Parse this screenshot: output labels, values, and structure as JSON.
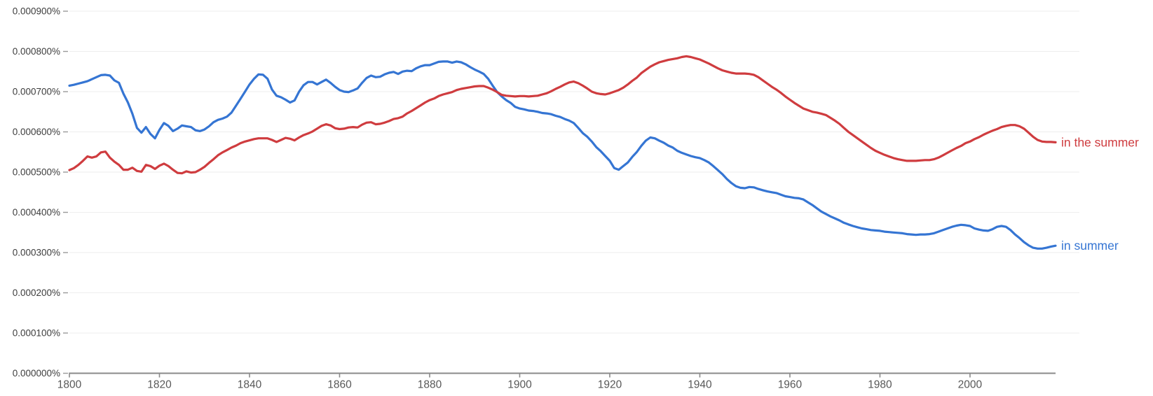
{
  "chart_data": {
    "type": "line",
    "title": "",
    "xlabel": "",
    "ylabel": "",
    "grid": true,
    "legend_position": "labels at right end of each line",
    "value_unit": "percent x 1e-4 (e.g. 7.15 = 0.000715%)",
    "x_range": [
      1800,
      2019
    ],
    "ylim": [
      0,
      9
    ],
    "x_ticks": [
      1800,
      1820,
      1840,
      1860,
      1880,
      1900,
      1920,
      1940,
      1960,
      1980,
      2000
    ],
    "y_ticks": [
      {
        "label": "0.000900%",
        "value": 9
      },
      {
        "label": "0.000800%",
        "value": 8
      },
      {
        "label": "0.000700%",
        "value": 7
      },
      {
        "label": "0.000600%",
        "value": 6
      },
      {
        "label": "0.000500%",
        "value": 5
      },
      {
        "label": "0.000400%",
        "value": 4
      },
      {
        "label": "0.000300%",
        "value": 3
      },
      {
        "label": "0.000200%",
        "value": 2
      },
      {
        "label": "0.000100%",
        "value": 1
      },
      {
        "label": "0.000000%",
        "value": 0
      }
    ],
    "series": [
      {
        "name": "in summer",
        "color": "#3575d3",
        "start_year": 1800,
        "step_years": 1,
        "values": [
          7.15,
          7.17,
          7.2,
          7.23,
          7.26,
          7.31,
          7.36,
          7.41,
          7.42,
          7.4,
          7.28,
          7.22,
          6.95,
          6.73,
          6.45,
          6.1,
          5.98,
          6.12,
          5.95,
          5.84,
          6.05,
          6.22,
          6.15,
          6.02,
          6.08,
          6.16,
          6.14,
          6.12,
          6.04,
          6.02,
          6.06,
          6.14,
          6.24,
          6.3,
          6.33,
          6.38,
          6.48,
          6.65,
          6.82,
          7.0,
          7.18,
          7.32,
          7.43,
          7.42,
          7.32,
          7.05,
          6.9,
          6.86,
          6.8,
          6.73,
          6.78,
          7.0,
          7.16,
          7.24,
          7.24,
          7.18,
          7.24,
          7.3,
          7.22,
          7.12,
          7.04,
          7.0,
          6.99,
          7.03,
          7.08,
          7.22,
          7.34,
          7.4,
          7.36,
          7.37,
          7.43,
          7.47,
          7.49,
          7.44,
          7.5,
          7.52,
          7.51,
          7.58,
          7.63,
          7.66,
          7.66,
          7.7,
          7.74,
          7.75,
          7.75,
          7.72,
          7.75,
          7.73,
          7.68,
          7.61,
          7.55,
          7.5,
          7.44,
          7.32,
          7.15,
          6.99,
          6.88,
          6.79,
          6.72,
          6.62,
          6.58,
          6.56,
          6.53,
          6.52,
          6.5,
          6.47,
          6.46,
          6.44,
          6.4,
          6.37,
          6.32,
          6.28,
          6.22,
          6.1,
          5.97,
          5.88,
          5.76,
          5.62,
          5.52,
          5.4,
          5.28,
          5.1,
          5.06,
          5.15,
          5.24,
          5.38,
          5.5,
          5.65,
          5.78,
          5.86,
          5.84,
          5.78,
          5.73,
          5.66,
          5.61,
          5.53,
          5.48,
          5.44,
          5.4,
          5.37,
          5.35,
          5.3,
          5.24,
          5.15,
          5.05,
          4.95,
          4.83,
          4.73,
          4.65,
          4.61,
          4.6,
          4.63,
          4.62,
          4.58,
          4.55,
          4.52,
          4.5,
          4.48,
          4.44,
          4.4,
          4.38,
          4.36,
          4.35,
          4.32,
          4.25,
          4.18,
          4.1,
          4.02,
          3.96,
          3.9,
          3.85,
          3.8,
          3.74,
          3.7,
          3.66,
          3.63,
          3.6,
          3.58,
          3.56,
          3.55,
          3.54,
          3.52,
          3.51,
          3.5,
          3.49,
          3.48,
          3.46,
          3.45,
          3.44,
          3.45,
          3.45,
          3.46,
          3.48,
          3.52,
          3.56,
          3.6,
          3.64,
          3.67,
          3.69,
          3.68,
          3.66,
          3.6,
          3.57,
          3.55,
          3.54,
          3.58,
          3.64,
          3.66,
          3.64,
          3.56,
          3.45,
          3.36,
          3.26,
          3.18,
          3.12,
          3.1,
          3.1,
          3.12,
          3.15,
          3.17
        ]
      },
      {
        "name": "in the summer",
        "color": "#cf3c3f",
        "start_year": 1800,
        "step_years": 1,
        "values": [
          5.05,
          5.1,
          5.18,
          5.28,
          5.39,
          5.36,
          5.39,
          5.49,
          5.51,
          5.36,
          5.26,
          5.18,
          5.06,
          5.06,
          5.11,
          5.03,
          5.01,
          5.18,
          5.15,
          5.08,
          5.16,
          5.21,
          5.15,
          5.06,
          4.98,
          4.97,
          5.02,
          4.99,
          5.0,
          5.06,
          5.13,
          5.23,
          5.32,
          5.42,
          5.49,
          5.55,
          5.61,
          5.66,
          5.72,
          5.76,
          5.79,
          5.82,
          5.84,
          5.84,
          5.84,
          5.8,
          5.75,
          5.8,
          5.85,
          5.83,
          5.79,
          5.86,
          5.92,
          5.96,
          6.01,
          6.08,
          6.15,
          6.19,
          6.16,
          6.09,
          6.07,
          6.08,
          6.11,
          6.12,
          6.11,
          6.18,
          6.23,
          6.24,
          6.19,
          6.2,
          6.23,
          6.27,
          6.32,
          6.34,
          6.38,
          6.46,
          6.52,
          6.59,
          6.66,
          6.73,
          6.79,
          6.83,
          6.89,
          6.93,
          6.96,
          6.99,
          7.04,
          7.07,
          7.09,
          7.11,
          7.13,
          7.14,
          7.14,
          7.1,
          7.05,
          6.99,
          6.92,
          6.9,
          6.89,
          6.88,
          6.89,
          6.89,
          6.88,
          6.89,
          6.9,
          6.93,
          6.96,
          7.01,
          7.07,
          7.12,
          7.18,
          7.23,
          7.25,
          7.21,
          7.15,
          7.08,
          7.0,
          6.96,
          6.94,
          6.93,
          6.96,
          7.0,
          7.04,
          7.1,
          7.18,
          7.27,
          7.35,
          7.46,
          7.54,
          7.62,
          7.68,
          7.73,
          7.76,
          7.79,
          7.81,
          7.83,
          7.86,
          7.88,
          7.86,
          7.83,
          7.8,
          7.75,
          7.7,
          7.64,
          7.58,
          7.53,
          7.5,
          7.47,
          7.45,
          7.45,
          7.45,
          7.44,
          7.42,
          7.36,
          7.28,
          7.2,
          7.12,
          7.05,
          6.97,
          6.88,
          6.8,
          6.72,
          6.65,
          6.58,
          6.54,
          6.5,
          6.48,
          6.45,
          6.42,
          6.35,
          6.28,
          6.2,
          6.1,
          6.0,
          5.92,
          5.84,
          5.76,
          5.68,
          5.6,
          5.53,
          5.48,
          5.43,
          5.39,
          5.35,
          5.32,
          5.3,
          5.28,
          5.28,
          5.28,
          5.29,
          5.3,
          5.3,
          5.32,
          5.36,
          5.42,
          5.48,
          5.54,
          5.6,
          5.65,
          5.72,
          5.76,
          5.82,
          5.87,
          5.93,
          5.98,
          6.03,
          6.07,
          6.12,
          6.15,
          6.17,
          6.17,
          6.14,
          6.08,
          5.98,
          5.88,
          5.8,
          5.76,
          5.75,
          5.75,
          5.74
        ]
      }
    ],
    "colors": {
      "background": "#ffffff",
      "gridline": "#eeeeee",
      "axis": "#8a8a8a",
      "y_tick_text": "#3d3d3d",
      "x_tick_text": "#585858"
    }
  }
}
